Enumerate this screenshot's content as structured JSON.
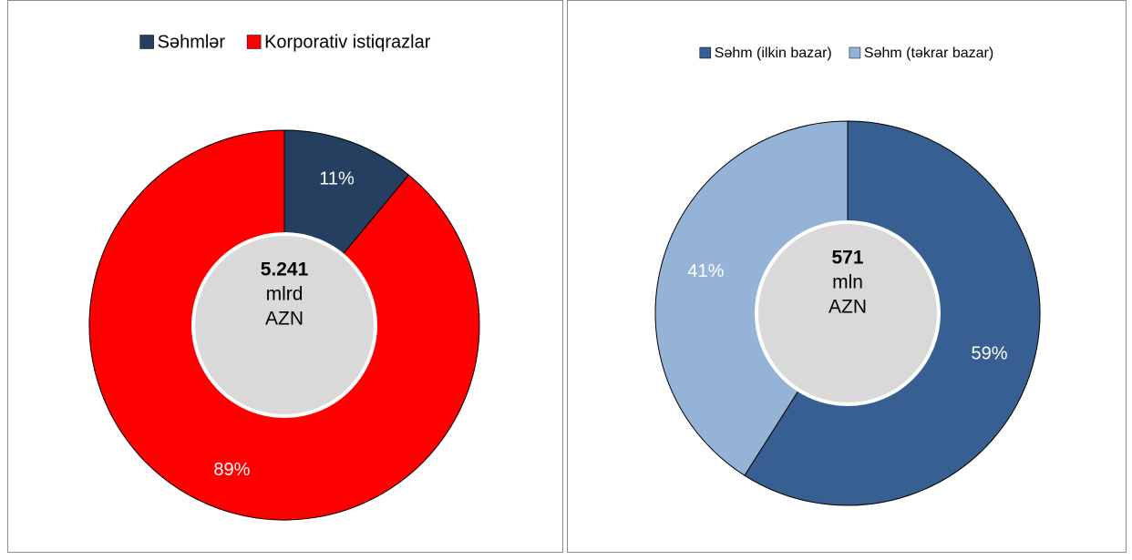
{
  "chart_data": [
    {
      "type": "pie",
      "donut": true,
      "categories": [
        "Səhmlər",
        "Korporativ istiqrazlar"
      ],
      "values": [
        11,
        89
      ],
      "value_labels": [
        "11%",
        "89%"
      ],
      "colors": [
        "#243f60",
        "#ff0000"
      ],
      "center_value": "5.241",
      "center_unit": "mlrd",
      "center_currency": "AZN",
      "legend": "top"
    },
    {
      "type": "pie",
      "donut": true,
      "categories": [
        "Səhm (ilkin bazar)",
        "Səhm (təkrar bazar)"
      ],
      "values": [
        59,
        41
      ],
      "value_labels": [
        "59%",
        "41%"
      ],
      "colors": [
        "#375f92",
        "#95b3d7"
      ],
      "center_value": "571",
      "center_unit": "mln",
      "center_currency": "AZN",
      "legend": "top"
    }
  ]
}
